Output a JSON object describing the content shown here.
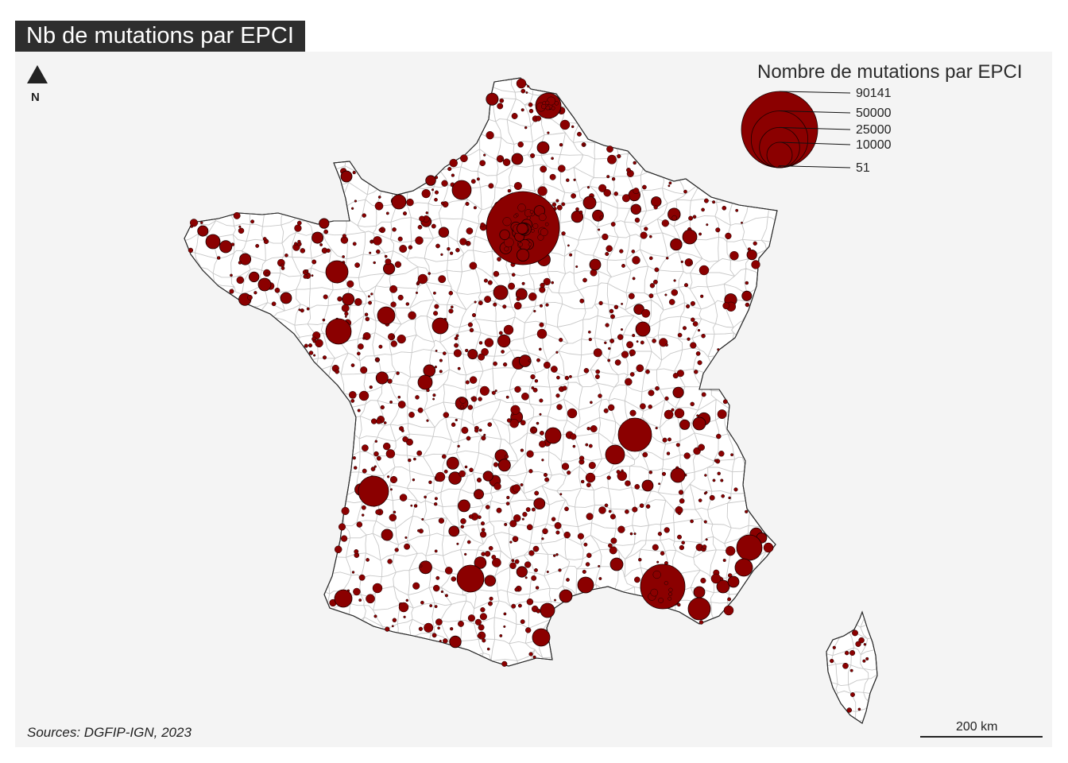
{
  "title": "Nb de mutations par EPCI",
  "legend": {
    "title": "Nombre de mutations par EPCI",
    "values": [
      {
        "label": "90141",
        "value": 90141
      },
      {
        "label": "50000",
        "value": 50000
      },
      {
        "label": "25000",
        "value": 25000
      },
      {
        "label": "10000",
        "value": 10000
      },
      {
        "label": "51",
        "value": 51
      }
    ]
  },
  "north_label": "N",
  "scale_label": "200 km",
  "sources": "Sources: DGFIP-IGN, 2023",
  "colors": {
    "symbol_fill": "#8b0000",
    "symbol_stroke": "#1a0000",
    "land": "#ffffff",
    "boundaries": "#c8c8c8",
    "panel_bg": "#f4f4f4",
    "title_bg": "#2e2e2e"
  }
}
